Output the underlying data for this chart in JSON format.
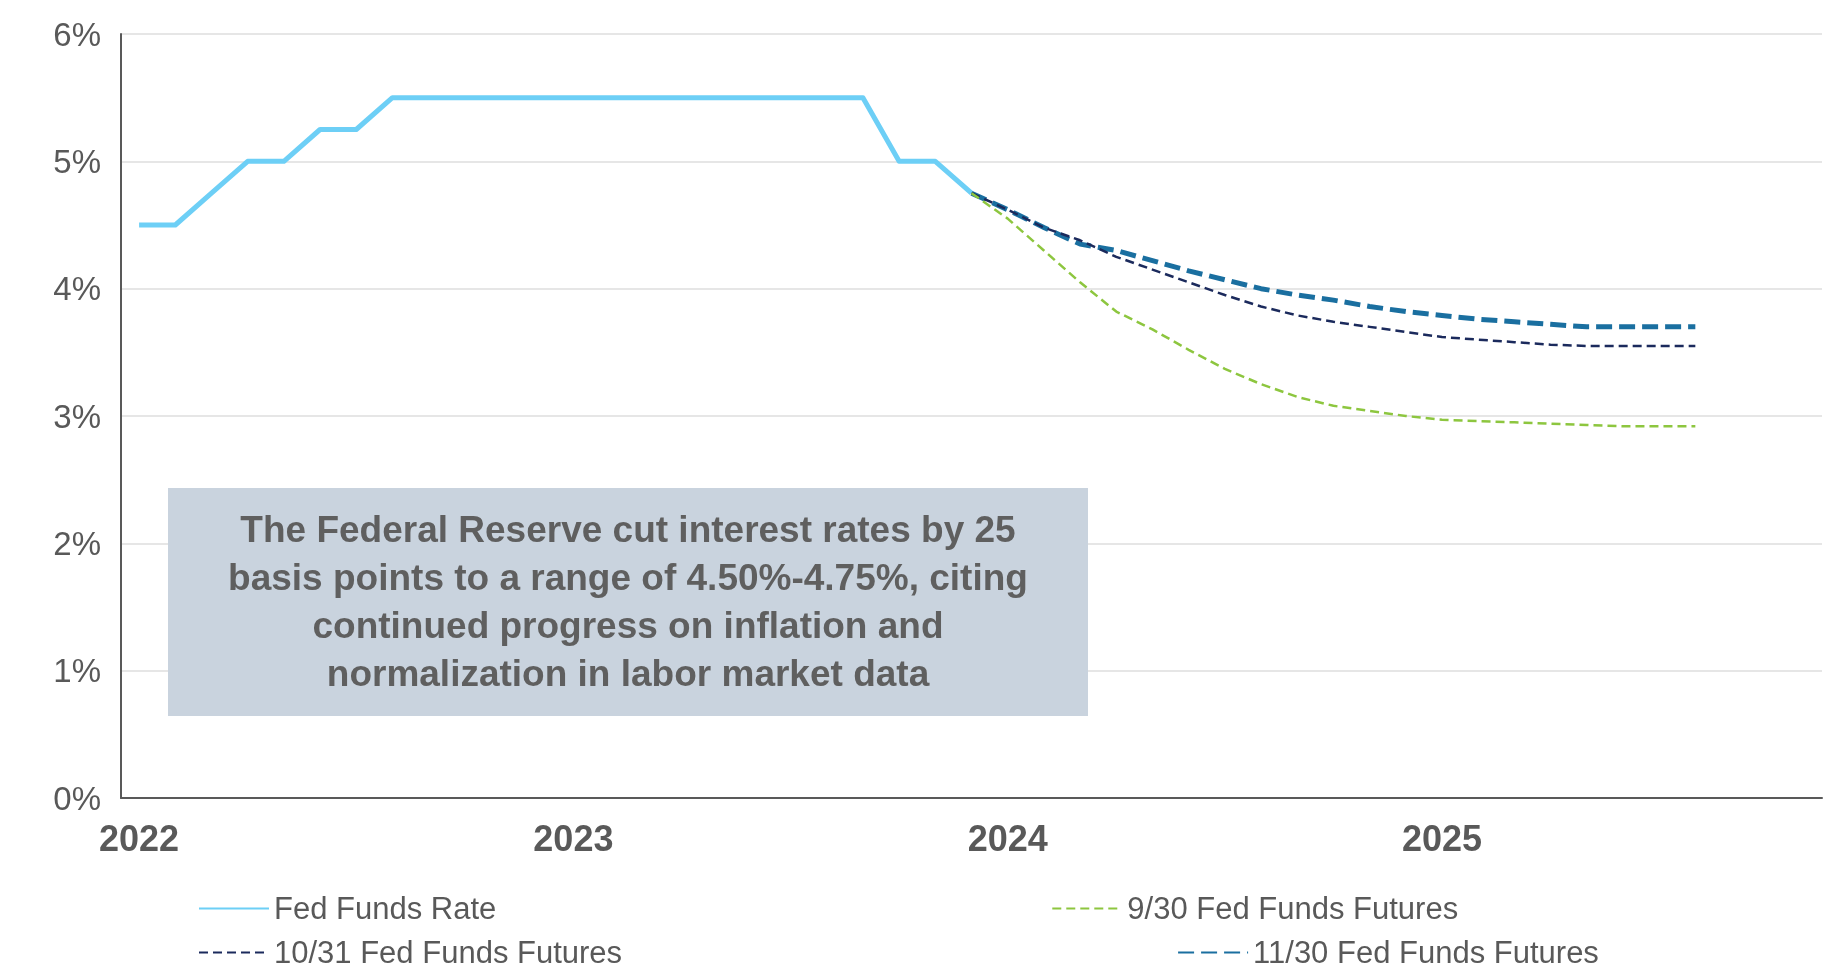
{
  "chart_data": {
    "type": "line",
    "categories": [
      "2022",
      null,
      null,
      null,
      null,
      null,
      null,
      null,
      null,
      null,
      null,
      null,
      "2023",
      null,
      null,
      null,
      null,
      null,
      null,
      null,
      null,
      null,
      null,
      null,
      "2024",
      null,
      null,
      null,
      null,
      null,
      null,
      null,
      null,
      null,
      null,
      null,
      "2025",
      null,
      null,
      null,
      null,
      null,
      null,
      null,
      null,
      null,
      null
    ],
    "series": [
      {
        "name": "Fed Funds Rate",
        "color": "#6dcff6",
        "line_style": "solid",
        "values": [
          4.5,
          4.5,
          4.75,
          5,
          5,
          5.25,
          5.25,
          5.5,
          5.5,
          5.5,
          5.5,
          5.5,
          5.5,
          5.5,
          5.5,
          5.5,
          5.5,
          5.5,
          5.5,
          5.5,
          5.5,
          5,
          5,
          4.75,
          null,
          null,
          null,
          null,
          null,
          null,
          null,
          null,
          null,
          null,
          null,
          null,
          null,
          null,
          null,
          null,
          null,
          null,
          null,
          null,
          null,
          null,
          null
        ]
      },
      {
        "name": "9/30 Fed Funds Futures",
        "color": "#8dc63f",
        "line_style": "dashed",
        "values": [
          null,
          null,
          null,
          null,
          null,
          null,
          null,
          null,
          null,
          null,
          null,
          null,
          null,
          null,
          null,
          null,
          null,
          null,
          null,
          null,
          null,
          null,
          null,
          4.75,
          4.55,
          4.3,
          4.05,
          3.82,
          3.68,
          3.52,
          3.37,
          3.25,
          3.15,
          3.08,
          3.04,
          3.0,
          2.97,
          2.96,
          2.95,
          2.94,
          2.93,
          2.92,
          2.92,
          2.92,
          null,
          null,
          null
        ]
      },
      {
        "name": "10/31 Fed Funds Futures",
        "color": "#1b2a5c",
        "line_style": "dashed",
        "values": [
          null,
          null,
          null,
          null,
          null,
          null,
          null,
          null,
          null,
          null,
          null,
          null,
          null,
          null,
          null,
          null,
          null,
          null,
          null,
          null,
          null,
          null,
          null,
          4.75,
          4.62,
          4.48,
          4.38,
          4.25,
          4.15,
          4.05,
          3.95,
          3.86,
          3.79,
          3.74,
          3.7,
          3.66,
          3.62,
          3.6,
          3.58,
          3.56,
          3.55,
          3.55,
          3.55,
          3.55,
          null,
          null,
          null
        ]
      },
      {
        "name": "11/30 Fed Funds Futures",
        "color": "#1a6fa0",
        "line_style": "dashed",
        "values": [
          null,
          null,
          null,
          null,
          null,
          null,
          null,
          null,
          null,
          null,
          null,
          null,
          null,
          null,
          null,
          null,
          null,
          null,
          null,
          null,
          null,
          null,
          null,
          4.75,
          4.62,
          4.48,
          4.35,
          4.3,
          4.22,
          4.14,
          4.07,
          4.0,
          3.95,
          3.91,
          3.86,
          3.82,
          3.79,
          3.76,
          3.74,
          3.72,
          3.7,
          3.7,
          3.7,
          3.7,
          null,
          null,
          null
        ]
      }
    ],
    "ylim": [
      0,
      6
    ],
    "yticks": [
      {
        "value": 0,
        "label": "0%"
      },
      {
        "value": 1,
        "label": "1%"
      },
      {
        "value": 2,
        "label": "2%"
      },
      {
        "value": 3,
        "label": "3%"
      },
      {
        "value": 4,
        "label": "4%"
      },
      {
        "value": 5,
        "label": "5%"
      },
      {
        "value": 6,
        "label": "6%"
      }
    ],
    "grid": "y",
    "legend": "bottom",
    "marker": "none",
    "annotations": [
      "The Federal Reserve cut interest rates by 25 basis points to a range of 4.50%-4.75%, citing continued progress on inflation and normalization in labor market data"
    ]
  }
}
